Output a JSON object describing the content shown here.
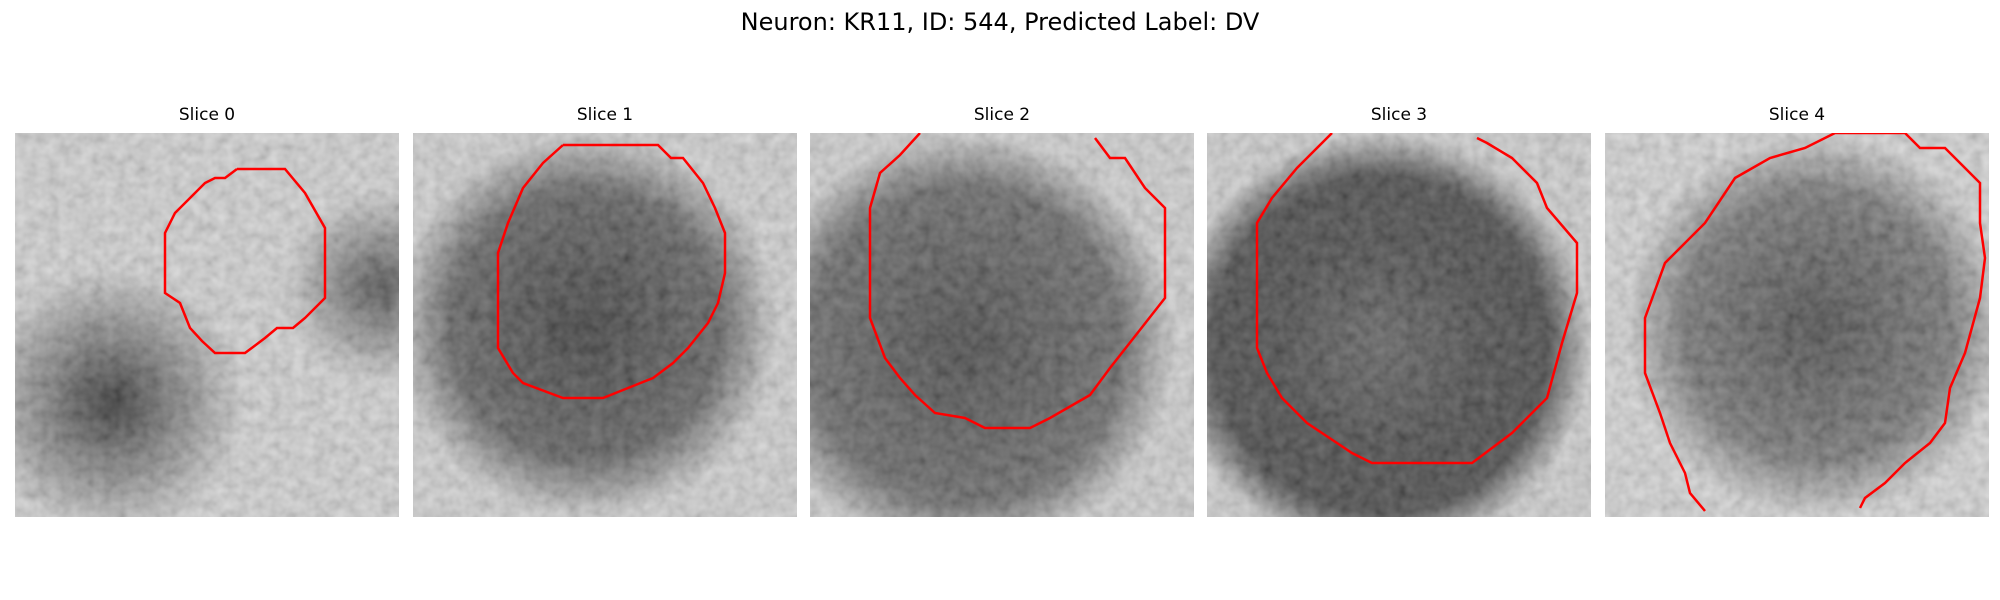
{
  "figure": {
    "title": "Neuron: KR11, ID: 544, Predicted Label: DV"
  },
  "colors": {
    "contour": "#ff0000"
  },
  "slices": [
    {
      "label": "Slice 0",
      "style": "slice0"
    },
    {
      "label": "Slice 1",
      "style": "slice1"
    },
    {
      "label": "Slice 2",
      "style": "slice2"
    },
    {
      "label": "Slice 3",
      "style": "slice3"
    },
    {
      "label": "Slice 4",
      "style": "slice4"
    }
  ]
}
